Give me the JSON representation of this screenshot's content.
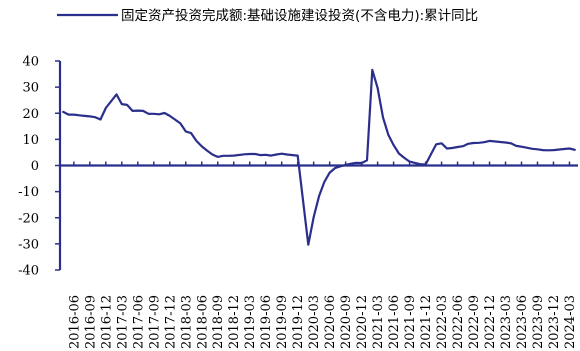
{
  "chart_data": {
    "type": "line",
    "title": "",
    "xlabel": "",
    "ylabel": "",
    "ylim": [
      -40,
      40
    ],
    "yticks": [
      -40,
      -30,
      -20,
      -10,
      0,
      10,
      20,
      30,
      40
    ],
    "legend_position": "top",
    "grid": false,
    "xtick_labels": [
      "2016-06",
      "2016-09",
      "2016-12",
      "2017-03",
      "2017-06",
      "2017-09",
      "2017-12",
      "2018-03",
      "2018-06",
      "2018-09",
      "2018-12",
      "2019-03",
      "2019-06",
      "2019-09",
      "2019-12",
      "2020-03",
      "2020-06",
      "2020-09",
      "2020-12",
      "2021-03",
      "2021-06",
      "2021-09",
      "2021-12",
      "2022-03",
      "2022-06",
      "2022-09",
      "2022-12",
      "2023-03",
      "2023-06",
      "2023-09",
      "2023-12",
      "2024-03"
    ],
    "series": [
      {
        "name": "固定资产投资完成额:基础设施建设投资(不含电力):累计同比",
        "color": "#2b2f8c",
        "points": [
          [
            "2016-04",
            20.5
          ],
          [
            "2016-05",
            19.5
          ],
          [
            "2016-06",
            19.5
          ],
          [
            "2016-07",
            19.2
          ],
          [
            "2016-08",
            19.0
          ],
          [
            "2016-09",
            18.8
          ],
          [
            "2016-10",
            18.5
          ],
          [
            "2016-11",
            17.6
          ],
          [
            "2016-12",
            22.0
          ],
          [
            "2017-02",
            27.2
          ],
          [
            "2017-03",
            23.5
          ],
          [
            "2017-04",
            23.2
          ],
          [
            "2017-05",
            20.9
          ],
          [
            "2017-06",
            21.0
          ],
          [
            "2017-07",
            20.9
          ],
          [
            "2017-08",
            19.8
          ],
          [
            "2017-09",
            19.8
          ],
          [
            "2017-10",
            19.6
          ],
          [
            "2017-11",
            20.1
          ],
          [
            "2017-12",
            19.0
          ],
          [
            "2018-02",
            16.1
          ],
          [
            "2018-03",
            13.0
          ],
          [
            "2018-04",
            12.4
          ],
          [
            "2018-05",
            9.4
          ],
          [
            "2018-06",
            7.3
          ],
          [
            "2018-07",
            5.7
          ],
          [
            "2018-08",
            4.2
          ],
          [
            "2018-09",
            3.3
          ],
          [
            "2018-10",
            3.7
          ],
          [
            "2018-11",
            3.7
          ],
          [
            "2018-12",
            3.8
          ],
          [
            "2019-02",
            4.3
          ],
          [
            "2019-03",
            4.4
          ],
          [
            "2019-04",
            4.4
          ],
          [
            "2019-05",
            4.0
          ],
          [
            "2019-06",
            4.1
          ],
          [
            "2019-07",
            3.8
          ],
          [
            "2019-08",
            4.2
          ],
          [
            "2019-09",
            4.5
          ],
          [
            "2019-10",
            4.2
          ],
          [
            "2019-11",
            4.0
          ],
          [
            "2019-12",
            3.8
          ],
          [
            "2020-02",
            -30.3
          ],
          [
            "2020-03",
            -19.7
          ],
          [
            "2020-04",
            -11.8
          ],
          [
            "2020-05",
            -6.3
          ],
          [
            "2020-06",
            -2.7
          ],
          [
            "2020-07",
            -1.0
          ],
          [
            "2020-08",
            -0.3
          ],
          [
            "2020-09",
            0.2
          ],
          [
            "2020-10",
            0.7
          ],
          [
            "2020-11",
            1.0
          ],
          [
            "2020-12",
            0.9
          ],
          [
            "2021-01",
            2.0
          ],
          [
            "2021-02",
            36.6
          ],
          [
            "2021-03",
            29.7
          ],
          [
            "2021-04",
            18.4
          ],
          [
            "2021-05",
            11.8
          ],
          [
            "2021-06",
            7.8
          ],
          [
            "2021-07",
            4.6
          ],
          [
            "2021-08",
            2.9
          ],
          [
            "2021-09",
            1.5
          ],
          [
            "2021-10",
            1.0
          ],
          [
            "2021-11",
            0.5
          ],
          [
            "2021-12",
            0.4
          ],
          [
            "2022-02",
            8.1
          ],
          [
            "2022-03",
            8.5
          ],
          [
            "2022-04",
            6.5
          ],
          [
            "2022-05",
            6.7
          ],
          [
            "2022-06",
            7.1
          ],
          [
            "2022-07",
            7.4
          ],
          [
            "2022-08",
            8.3
          ],
          [
            "2022-09",
            8.6
          ],
          [
            "2022-10",
            8.7
          ],
          [
            "2022-11",
            8.9
          ],
          [
            "2022-12",
            9.4
          ],
          [
            "2023-02",
            9.0
          ],
          [
            "2023-03",
            8.8
          ],
          [
            "2023-04",
            8.5
          ],
          [
            "2023-05",
            7.5
          ],
          [
            "2023-06",
            7.2
          ],
          [
            "2023-07",
            6.8
          ],
          [
            "2023-08",
            6.4
          ],
          [
            "2023-09",
            6.2
          ],
          [
            "2023-10",
            5.9
          ],
          [
            "2023-11",
            5.8
          ],
          [
            "2023-12",
            5.9
          ],
          [
            "2024-02",
            6.3
          ],
          [
            "2024-03",
            6.5
          ],
          [
            "2024-04",
            6.0
          ]
        ]
      }
    ]
  }
}
